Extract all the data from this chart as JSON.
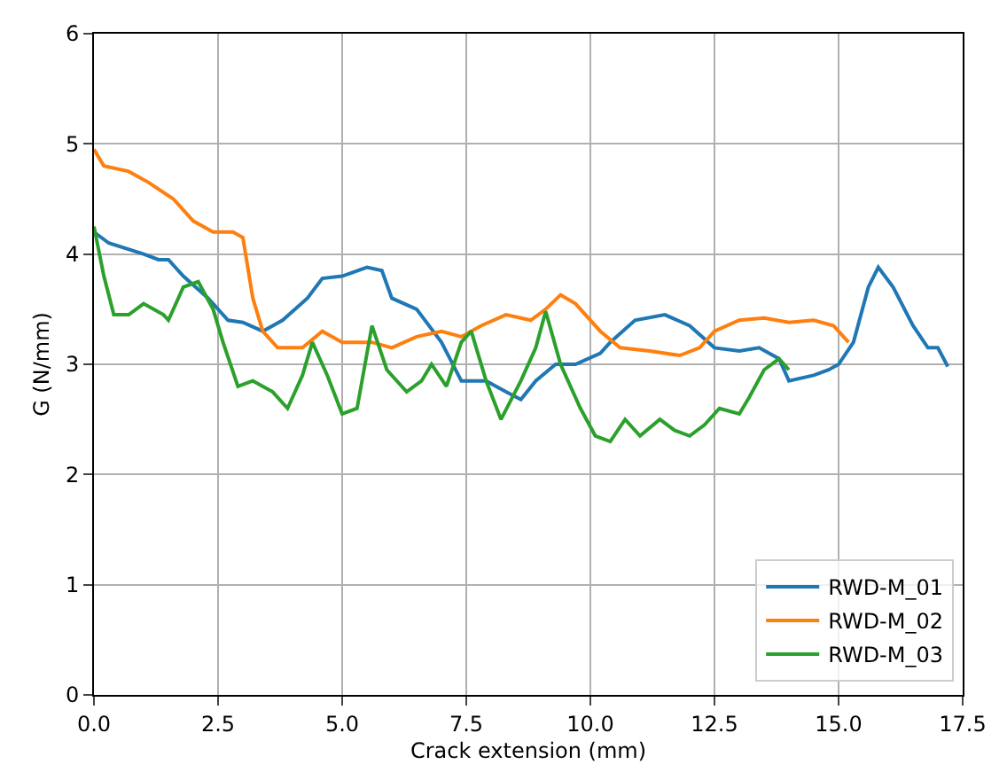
{
  "chart_data": {
    "type": "line",
    "xlabel": "Crack extension (mm)",
    "ylabel": "G (N/mm)",
    "xlim": [
      0,
      17.5
    ],
    "xticks": [
      {
        "value": 0,
        "label": "0.0"
      },
      {
        "value": 2.5,
        "label": "2.5"
      },
      {
        "value": 5,
        "label": "5.0"
      },
      {
        "value": 7.5,
        "label": "7.5"
      },
      {
        "value": 10,
        "label": "10.0"
      },
      {
        "value": 12.5,
        "label": "12.5"
      },
      {
        "value": 15,
        "label": "15.0"
      },
      {
        "value": 17.5,
        "label": "17.5"
      }
    ],
    "ylim": [
      0,
      6
    ],
    "yticks": [
      0,
      1,
      2,
      3,
      4,
      5,
      6
    ],
    "grid": true,
    "legend": "bottom right",
    "series": [
      {
        "name": "RWD-M_01",
        "color": "#1f77b4",
        "x": [
          0,
          0.3,
          1.0,
          1.3,
          1.5,
          1.8,
          2.3,
          2.7,
          3.0,
          3.4,
          3.8,
          4.3,
          4.6,
          5.0,
          5.5,
          5.8,
          6.0,
          6.5,
          7.0,
          7.4,
          7.9,
          8.3,
          8.6,
          8.9,
          9.3,
          9.7,
          10.2,
          10.4,
          10.9,
          11.5,
          12.0,
          12.5,
          13.0,
          13.4,
          13.8,
          14.0,
          14.5,
          14.8,
          15.0,
          15.3,
          15.6,
          15.8,
          16.1,
          16.5,
          16.8,
          17.0,
          17.2
        ],
        "values": [
          4.2,
          4.1,
          4.0,
          3.95,
          3.95,
          3.8,
          3.6,
          3.4,
          3.38,
          3.3,
          3.4,
          3.6,
          3.78,
          3.8,
          3.88,
          3.85,
          3.6,
          3.5,
          3.2,
          2.85,
          2.85,
          2.75,
          2.68,
          2.85,
          3.0,
          3.0,
          3.1,
          3.2,
          3.4,
          3.45,
          3.35,
          3.15,
          3.12,
          3.15,
          3.05,
          2.85,
          2.9,
          2.95,
          3.0,
          3.2,
          3.7,
          3.88,
          3.7,
          3.35,
          3.15,
          3.15,
          2.98
        ]
      },
      {
        "name": "RWD-M_02",
        "color": "#ff7f0e",
        "x": [
          0,
          0.2,
          0.7,
          1.1,
          1.6,
          2.0,
          2.4,
          2.8,
          3.0,
          3.2,
          3.4,
          3.7,
          4.2,
          4.6,
          5.0,
          5.6,
          6.0,
          6.5,
          7.0,
          7.4,
          7.8,
          8.3,
          8.8,
          9.1,
          9.4,
          9.7,
          10.2,
          10.6,
          11.2,
          11.8,
          12.2,
          12.5,
          13.0,
          13.5,
          14.0,
          14.5,
          14.9,
          15.2
        ],
        "values": [
          4.95,
          4.8,
          4.75,
          4.65,
          4.5,
          4.3,
          4.2,
          4.2,
          4.15,
          3.6,
          3.3,
          3.15,
          3.15,
          3.3,
          3.2,
          3.2,
          3.15,
          3.25,
          3.3,
          3.25,
          3.35,
          3.45,
          3.4,
          3.5,
          3.63,
          3.55,
          3.3,
          3.15,
          3.12,
          3.08,
          3.15,
          3.3,
          3.4,
          3.42,
          3.38,
          3.4,
          3.35,
          3.2
        ]
      },
      {
        "name": "RWD-M_03",
        "color": "#2ca02c",
        "x": [
          0,
          0.2,
          0.4,
          0.7,
          1.0,
          1.4,
          1.5,
          1.8,
          2.1,
          2.4,
          2.6,
          2.9,
          3.2,
          3.6,
          3.9,
          4.2,
          4.4,
          4.7,
          5.0,
          5.3,
          5.6,
          5.9,
          6.3,
          6.6,
          6.8,
          7.1,
          7.4,
          7.6,
          7.9,
          8.2,
          8.6,
          8.9,
          9.1,
          9.4,
          9.8,
          10.1,
          10.4,
          10.7,
          11.0,
          11.4,
          11.7,
          12.0,
          12.3,
          12.6,
          13.0,
          13.2,
          13.5,
          13.8,
          14.0
        ],
        "values": [
          4.25,
          3.8,
          3.45,
          3.45,
          3.55,
          3.45,
          3.4,
          3.7,
          3.75,
          3.5,
          3.2,
          2.8,
          2.85,
          2.75,
          2.6,
          2.9,
          3.2,
          2.9,
          2.55,
          2.6,
          3.35,
          2.95,
          2.75,
          2.85,
          3.0,
          2.8,
          3.2,
          3.3,
          2.85,
          2.5,
          2.85,
          3.15,
          3.48,
          3.0,
          2.6,
          2.35,
          2.3,
          2.5,
          2.35,
          2.5,
          2.4,
          2.35,
          2.45,
          2.6,
          2.55,
          2.7,
          2.95,
          3.05,
          2.95
        ]
      }
    ]
  }
}
